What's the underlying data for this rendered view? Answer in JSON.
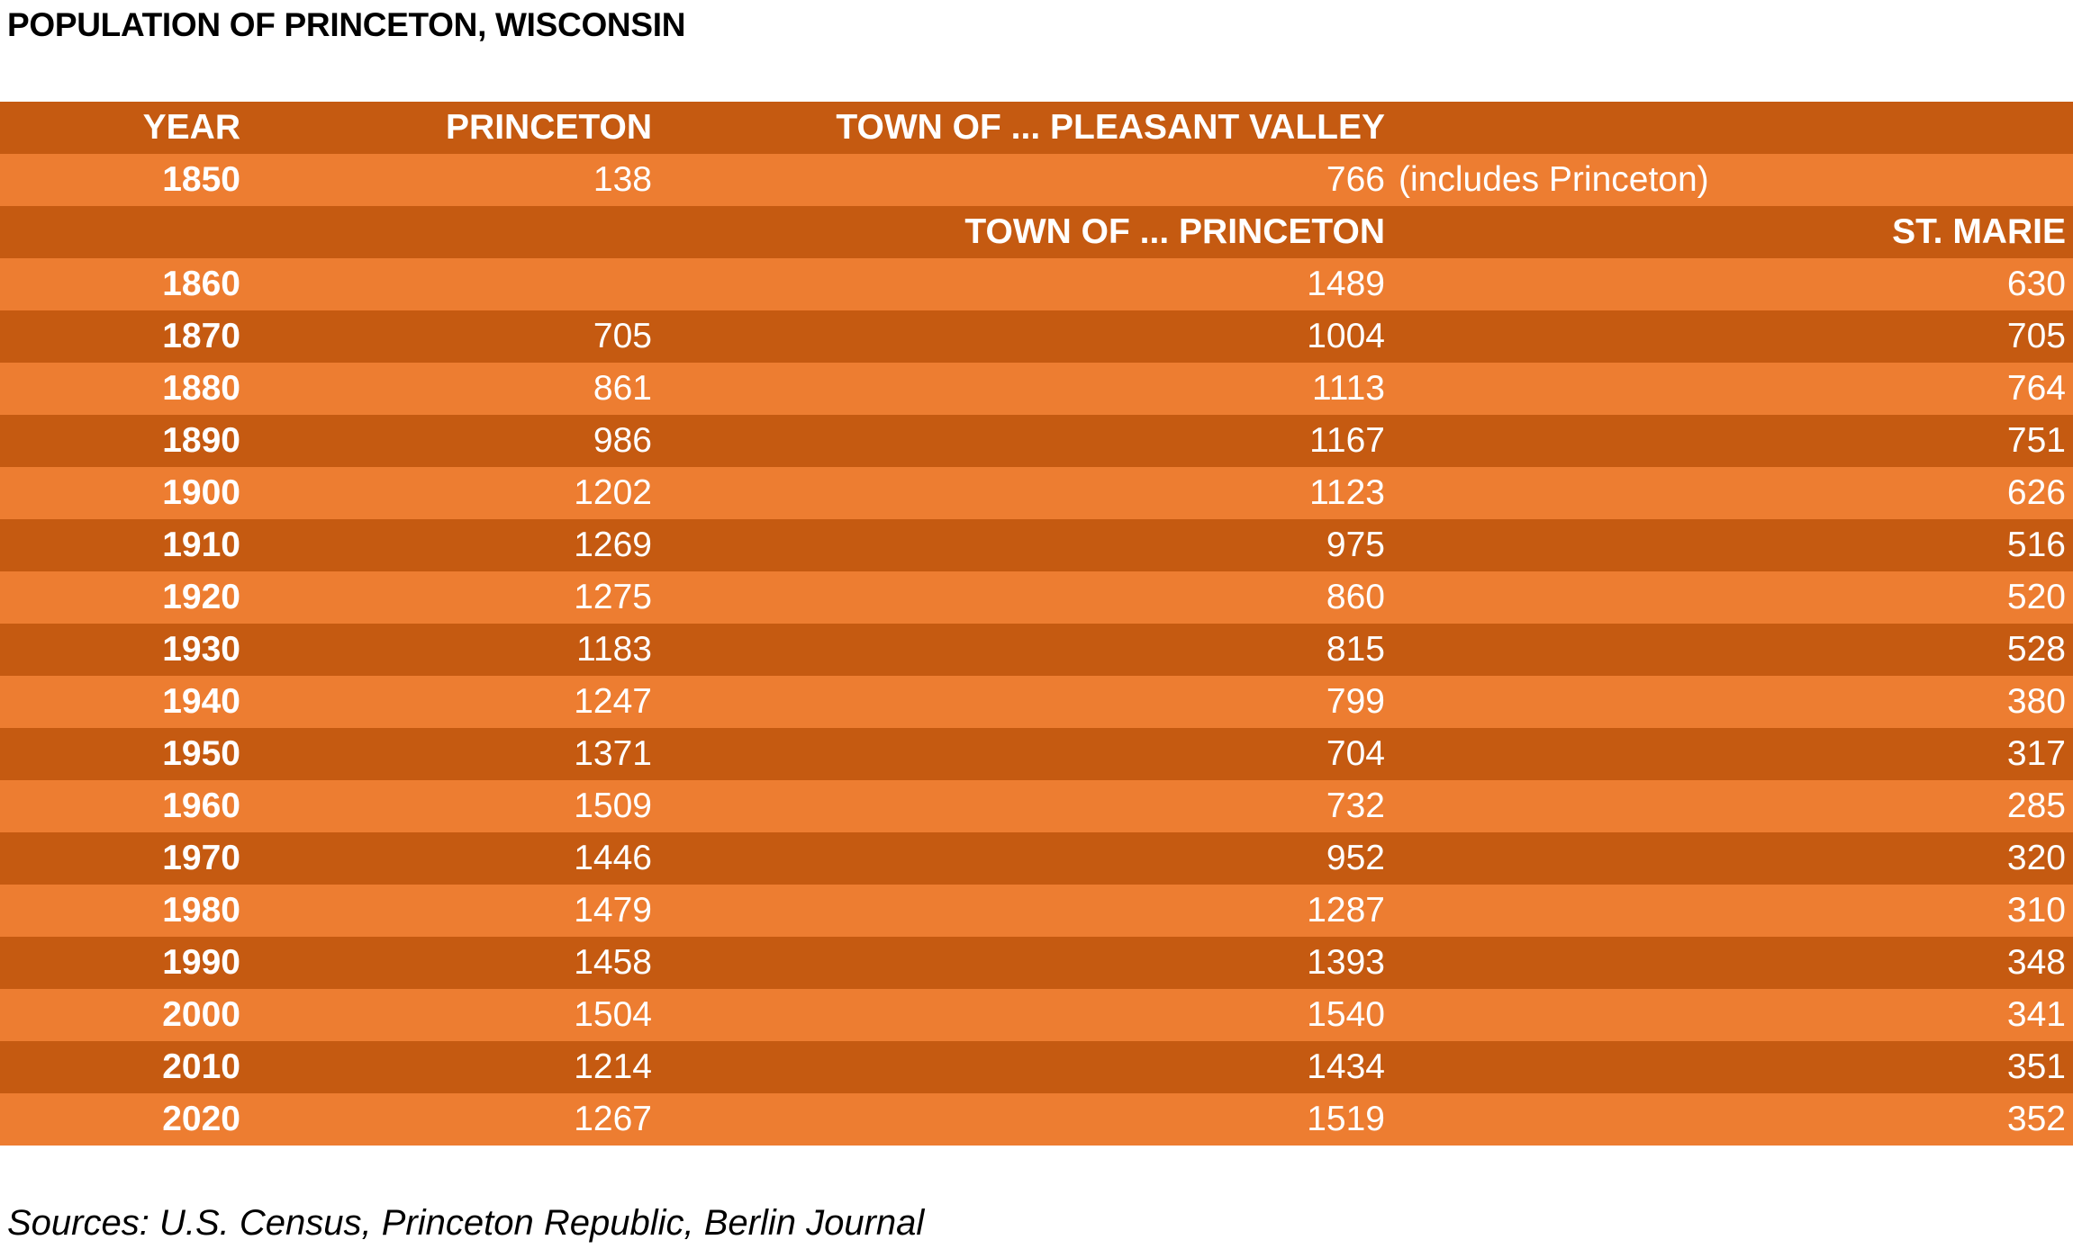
{
  "title": "POPULATION OF PRINCETON, WISCONSIN",
  "header1": {
    "year": "YEAR",
    "princeton": "PRINCETON",
    "town": "TOWN OF ... PLEASANT VALLEY"
  },
  "row1850": {
    "year": "1850",
    "princeton": "138",
    "town": "766",
    "note": "(includes Princeton)"
  },
  "header2": {
    "town": "TOWN OF ... PRINCETON",
    "st_marie": "ST. MARIE"
  },
  "source": "Sources: U.S. Census, Princeton Republic, Berlin Journal",
  "colors": {
    "dark_row": "#c55a11",
    "light_row": "#ed7d31",
    "text": "#ffffff"
  },
  "chart_data": {
    "type": "table",
    "title": "POPULATION OF PRINCETON, WISCONSIN",
    "columns": [
      "YEAR",
      "PRINCETON",
      "TOWN OF ... PRINCETON",
      "ST. MARIE"
    ],
    "rows": [
      {
        "year": "1860",
        "princeton": "",
        "town": "1489",
        "st_marie": "630"
      },
      {
        "year": "1870",
        "princeton": "705",
        "town": "1004",
        "st_marie": "705"
      },
      {
        "year": "1880",
        "princeton": "861",
        "town": "1113",
        "st_marie": "764"
      },
      {
        "year": "1890",
        "princeton": "986",
        "town": "1167",
        "st_marie": "751"
      },
      {
        "year": "1900",
        "princeton": "1202",
        "town": "1123",
        "st_marie": "626"
      },
      {
        "year": "1910",
        "princeton": "1269",
        "town": "975",
        "st_marie": "516"
      },
      {
        "year": "1920",
        "princeton": "1275",
        "town": "860",
        "st_marie": "520"
      },
      {
        "year": "1930",
        "princeton": "1183",
        "town": "815",
        "st_marie": "528"
      },
      {
        "year": "1940",
        "princeton": "1247",
        "town": "799",
        "st_marie": "380"
      },
      {
        "year": "1950",
        "princeton": "1371",
        "town": "704",
        "st_marie": "317"
      },
      {
        "year": "1960",
        "princeton": "1509",
        "town": "732",
        "st_marie": "285"
      },
      {
        "year": "1970",
        "princeton": "1446",
        "town": "952",
        "st_marie": "320"
      },
      {
        "year": "1980",
        "princeton": "1479",
        "town": "1287",
        "st_marie": "310"
      },
      {
        "year": "1990",
        "princeton": "1458",
        "town": "1393",
        "st_marie": "348"
      },
      {
        "year": "2000",
        "princeton": "1504",
        "town": "1540",
        "st_marie": "341"
      },
      {
        "year": "2010",
        "princeton": "1214",
        "town": "1434",
        "st_marie": "351"
      },
      {
        "year": "2020",
        "princeton": "1267",
        "town": "1519",
        "st_marie": "352"
      }
    ]
  }
}
